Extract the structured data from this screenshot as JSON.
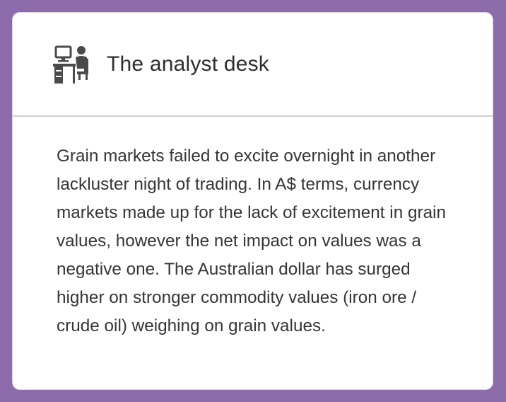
{
  "card": {
    "icon": "analyst-desk-icon",
    "title": "The analyst desk",
    "body": "Grain markets failed to excite overnight in another lackluster night of trading. In A$ terms, currency markets made up for the lack of excitement in grain values, however the net impact on values was a negative one. The Australian dollar has surged higher on stronger commodity values (iron ore / crude oil) weighing on grain values."
  },
  "colors": {
    "background": "#8e6bab",
    "card": "#ffffff",
    "icon": "#4a4a4a",
    "text": "#353535"
  }
}
